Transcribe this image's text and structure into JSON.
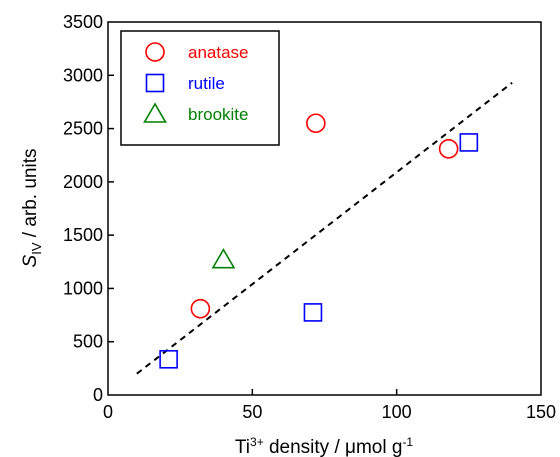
{
  "chart_data": {
    "type": "scatter",
    "xlabel": {
      "base": "Ti",
      "sup": "3+",
      "rest": " density / μmol g",
      "sup2": "-1"
    },
    "ylabel": {
      "sym": "S",
      "sub": "IV",
      "rest": " / arb. units"
    },
    "xlim": [
      0,
      150
    ],
    "ylim": [
      0,
      3500
    ],
    "xticks": [
      "0",
      "50",
      "100",
      "150"
    ],
    "yticks": [
      "0",
      "500",
      "1000",
      "1500",
      "2000",
      "2500",
      "3000",
      "3500"
    ],
    "grid": false,
    "legend_position": "top-left",
    "series": [
      {
        "name": "anatase",
        "marker": "circle",
        "color": "#ff0000",
        "points": [
          {
            "x": 32,
            "y": 810
          },
          {
            "x": 72,
            "y": 2550
          },
          {
            "x": 118,
            "y": 2310
          }
        ]
      },
      {
        "name": "rutile",
        "marker": "square",
        "color": "#0000ff",
        "points": [
          {
            "x": 21,
            "y": 335
          },
          {
            "x": 71,
            "y": 775
          },
          {
            "x": 125,
            "y": 2370
          }
        ]
      },
      {
        "name": "brookite",
        "marker": "triangle",
        "color": "#008000",
        "points": [
          {
            "x": 40,
            "y": 1270
          }
        ]
      }
    ],
    "trendline": {
      "style": "dashed",
      "color": "#000000",
      "x": [
        10,
        140
      ],
      "y": [
        200,
        2930
      ]
    }
  }
}
